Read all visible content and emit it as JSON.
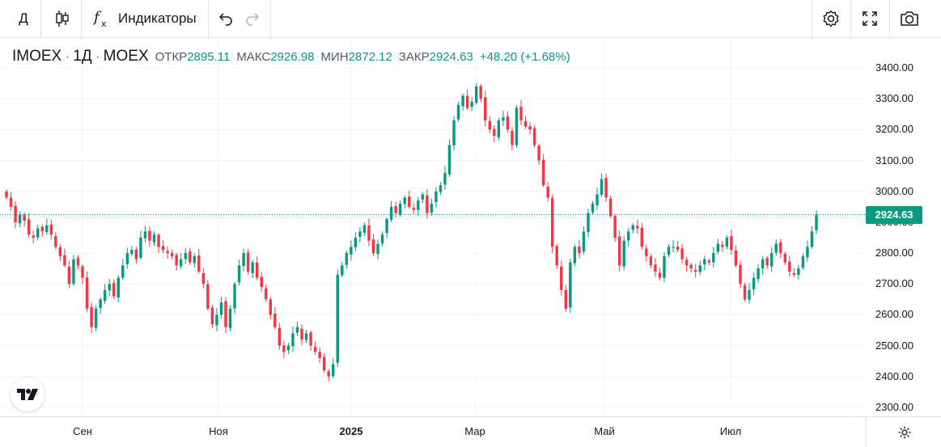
{
  "toolbar": {
    "interval": "Д",
    "indicators_label": "Индикаторы",
    "icons": [
      "candles-icon",
      "indicators-icon",
      "undo-icon",
      "redo-icon",
      "settings-icon",
      "fullscreen-icon",
      "camera-icon"
    ]
  },
  "legend": {
    "symbol": "IMOEX",
    "interval": "1Д",
    "exchange": "MOEX",
    "open_label": "ОТКР",
    "open": "2895.11",
    "high_label": "МАКС",
    "high": "2926.98",
    "low_label": "МИН",
    "low": "2872.12",
    "close_label": "ЗАКР",
    "close": "2924.63",
    "change": "+48.20 (+1.68%)"
  },
  "price_axis": {
    "ticks": [
      "3400.00",
      "3300.00",
      "3200.00",
      "3100.00",
      "3000.00",
      "2900.00",
      "2800.00",
      "2700.00",
      "2600.00",
      "2500.00",
      "2400.00",
      "2300.00"
    ],
    "last_price": "2924.63"
  },
  "time_axis": {
    "ticks": [
      {
        "label": "Сен",
        "bold": false
      },
      {
        "label": "Ноя",
        "bold": false
      },
      {
        "label": "2025",
        "bold": true
      },
      {
        "label": "Мар",
        "bold": false
      },
      {
        "label": "Май",
        "bold": false
      },
      {
        "label": "Июл",
        "bold": false
      }
    ]
  },
  "colors": {
    "up": "#089981",
    "down": "#f23645",
    "grid": "#f0f3fa",
    "text": "#131722"
  },
  "chart_data": {
    "type": "candlestick",
    "symbol": "IMOEX",
    "ylim": [
      2250,
      3450
    ],
    "close_line": 2924.63,
    "x_ticks": [
      "Сен",
      "Ноя",
      "2025",
      "Мар",
      "Май",
      "Июл"
    ],
    "y_ticks": [
      3400,
      3300,
      3200,
      3100,
      3000,
      2900,
      2800,
      2700,
      2600,
      2500,
      2400,
      2300
    ],
    "closes": [
      2980,
      2950,
      2900,
      2925,
      2905,
      2860,
      2850,
      2880,
      2870,
      2890,
      2860,
      2820,
      2790,
      2760,
      2700,
      2780,
      2760,
      2720,
      2620,
      2560,
      2620,
      2650,
      2680,
      2700,
      2660,
      2720,
      2760,
      2800,
      2810,
      2780,
      2850,
      2870,
      2840,
      2860,
      2820,
      2810,
      2800,
      2790,
      2760,
      2780,
      2800,
      2770,
      2790,
      2740,
      2700,
      2620,
      2570,
      2600,
      2640,
      2560,
      2620,
      2700,
      2760,
      2800,
      2740,
      2770,
      2720,
      2690,
      2650,
      2600,
      2560,
      2500,
      2480,
      2500,
      2540,
      2560,
      2520,
      2540,
      2500,
      2480,
      2460,
      2420,
      2400,
      2440,
      2730,
      2760,
      2800,
      2820,
      2850,
      2870,
      2890,
      2840,
      2800,
      2830,
      2860,
      2910,
      2950,
      2930,
      2960,
      2980,
      2950,
      2940,
      2970,
      2990,
      2930,
      2960,
      3000,
      3020,
      3060,
      3150,
      3230,
      3280,
      3310,
      3270,
      3290,
      3340,
      3300,
      3230,
      3200,
      3180,
      3230,
      3240,
      3200,
      3150,
      3270,
      3230,
      3210,
      3200,
      3150,
      3100,
      3020,
      2980,
      2820,
      2760,
      2680,
      2620,
      2770,
      2820,
      2800,
      2870,
      2930,
      2960,
      2990,
      3040,
      2980,
      2920,
      2850,
      2760,
      2840,
      2870,
      2890,
      2880,
      2820,
      2790,
      2760,
      2740,
      2720,
      2790,
      2820,
      2820,
      2810,
      2780,
      2760,
      2750,
      2740,
      2760,
      2780,
      2770,
      2800,
      2830,
      2820,
      2850,
      2810,
      2760,
      2700,
      2650,
      2680,
      2720,
      2750,
      2780,
      2760,
      2800,
      2830,
      2800,
      2770,
      2740,
      2730,
      2750,
      2790,
      2820,
      2870,
      2924.63
    ]
  }
}
